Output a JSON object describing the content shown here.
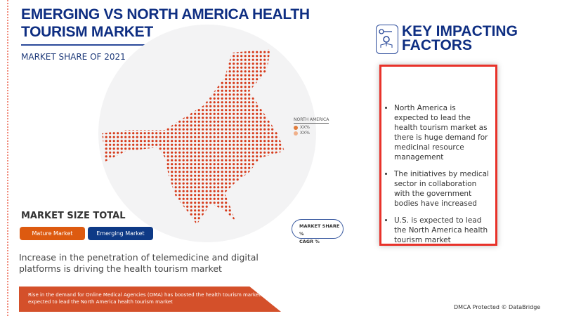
{
  "header": {
    "title_line1": "EMERGING VS NORTH AMERICA HEALTH",
    "title_line2": "TOURISM MARKET",
    "subtitle": "MARKET SHARE OF 2021"
  },
  "legend": {
    "heading": "NORTH AMERICA",
    "items": [
      {
        "label": "XX%",
        "color": "#e07b3a"
      },
      {
        "label": "XX%",
        "color": "#f0b08a"
      }
    ]
  },
  "metrics_pill": {
    "line1": "MARKET SHARE %",
    "line2": "CAGR %"
  },
  "market_size": {
    "title": "MARKET SIZE TOTAL",
    "buttons": [
      {
        "label": "Mature Market",
        "color": "#dd5a10"
      },
      {
        "label": "Emerging Market",
        "color": "#0e3a86"
      }
    ]
  },
  "driver_text": "Increase in the penetration of telemedicine and digital platforms is driving the health tourism market",
  "banner_text": "Rise in the demand for Online Medical Agencies (OMA) has boosted the health tourism market. U.S. is expected to lead the North America health tourism market",
  "key_factors": {
    "title_line1": "KEY IMPACTING",
    "title_line2": "FACTORS",
    "icon": "key-gear-icon",
    "items": [
      "North America is expected to lead the health tourism market as there is huge demand for medicinal resource management",
      "The initiatives by medical sector in collaboration with the government bodies have increased",
      "U.S. is expected to lead the North America health tourism market"
    ]
  },
  "footer": {
    "dmca": "DMCA Protected © DataBridge"
  },
  "colors": {
    "map_dots": "#d63a1a",
    "accent_navy": "#0e2e82",
    "card_border": "#e8322a"
  }
}
